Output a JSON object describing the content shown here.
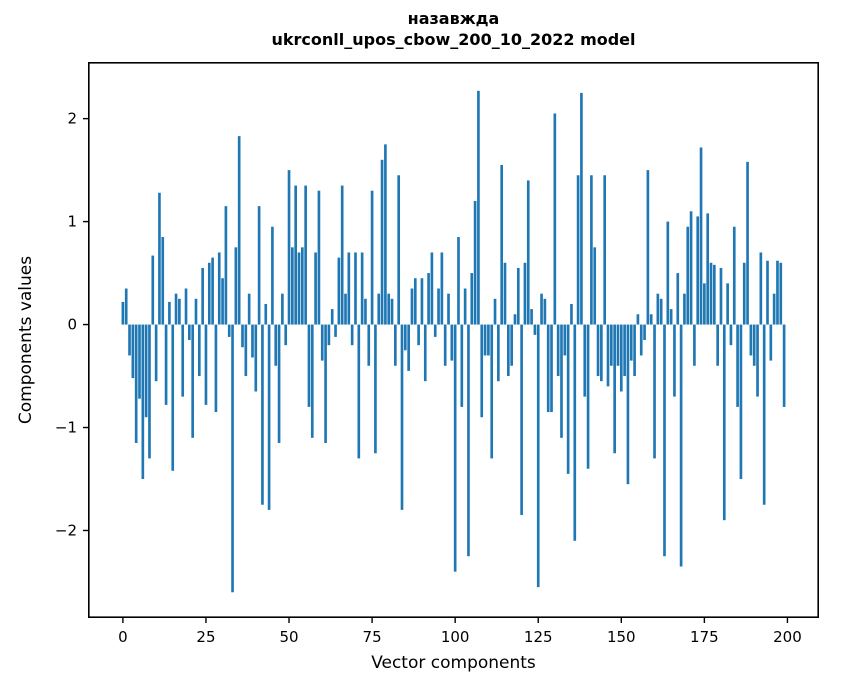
{
  "chart_data": {
    "type": "bar",
    "title_line1": "назавжда",
    "title_line2": "ukrconll_upos_cbow_200_10_2022 model",
    "xlabel": "Vector components",
    "ylabel": "Components values",
    "bar_color": "#1f77b4",
    "axis_color": "#000000",
    "x_ticks": [
      0,
      25,
      50,
      75,
      100,
      125,
      150,
      175,
      200
    ],
    "y_ticks": [
      -2,
      -1,
      0,
      1,
      2
    ],
    "xlim": [
      -10.5,
      209.5
    ],
    "ylim": [
      -2.85,
      2.55
    ],
    "grid": false,
    "legend": false,
    "x_start": 0,
    "values": [
      0.22,
      0.35,
      -0.3,
      -0.52,
      -1.15,
      -0.72,
      -1.5,
      -0.9,
      -1.3,
      0.67,
      -0.55,
      1.28,
      0.85,
      -0.78,
      0.22,
      -1.42,
      0.3,
      0.25,
      -0.7,
      0.35,
      -0.15,
      -1.1,
      0.25,
      -0.5,
      0.55,
      -0.78,
      0.6,
      0.65,
      -0.85,
      0.7,
      0.45,
      1.15,
      -0.12,
      -2.6,
      0.75,
      1.83,
      -0.22,
      -0.5,
      0.3,
      -0.32,
      -0.65,
      1.15,
      -1.75,
      0.2,
      -1.8,
      0.95,
      -0.4,
      -1.15,
      0.3,
      -0.2,
      1.5,
      0.75,
      1.35,
      0.7,
      0.75,
      1.35,
      -0.8,
      -1.1,
      0.7,
      1.3,
      -0.35,
      -1.15,
      -0.2,
      0.15,
      -0.12,
      0.65,
      1.35,
      0.3,
      0.7,
      -0.2,
      0.7,
      -1.3,
      0.7,
      0.25,
      -0.4,
      1.3,
      -1.25,
      0.3,
      1.6,
      1.75,
      0.3,
      0.25,
      -0.4,
      1.45,
      -1.8,
      -0.25,
      -0.45,
      0.35,
      0.45,
      -0.2,
      0.45,
      -0.55,
      0.5,
      0.7,
      -0.12,
      0.35,
      0.7,
      -0.4,
      0.3,
      -0.35,
      -2.4,
      0.85,
      -0.8,
      0.35,
      -2.25,
      0.5,
      1.2,
      2.27,
      -0.9,
      -0.3,
      -0.3,
      -1.3,
      0.25,
      -0.55,
      1.55,
      0.6,
      -0.5,
      -0.4,
      0.1,
      0.55,
      -1.85,
      0.6,
      1.4,
      0.15,
      -0.1,
      -2.55,
      0.3,
      0.25,
      -0.85,
      -0.85,
      2.05,
      -0.5,
      -1.1,
      -0.3,
      -1.45,
      0.2,
      -2.1,
      1.45,
      2.25,
      -0.7,
      -1.4,
      1.45,
      0.75,
      -0.5,
      -0.55,
      1.45,
      -0.6,
      -0.4,
      -1.25,
      -0.4,
      -0.65,
      -0.5,
      -1.55,
      -0.35,
      -0.5,
      0.1,
      -0.3,
      -0.15,
      1.5,
      0.1,
      -1.3,
      0.3,
      0.25,
      -2.25,
      1.0,
      0.15,
      -0.7,
      0.5,
      -2.35,
      0.3,
      0.95,
      1.1,
      -0.4,
      1.05,
      1.72,
      0.4,
      1.08,
      0.6,
      0.58,
      -0.4,
      0.55,
      -1.9,
      0.4,
      -0.2,
      0.95,
      -0.8,
      -1.5,
      0.6,
      1.58,
      -0.3,
      -0.4,
      -0.7,
      0.7,
      -1.75,
      0.62,
      -0.35,
      0.3,
      0.62,
      0.6,
      -0.8
    ]
  }
}
